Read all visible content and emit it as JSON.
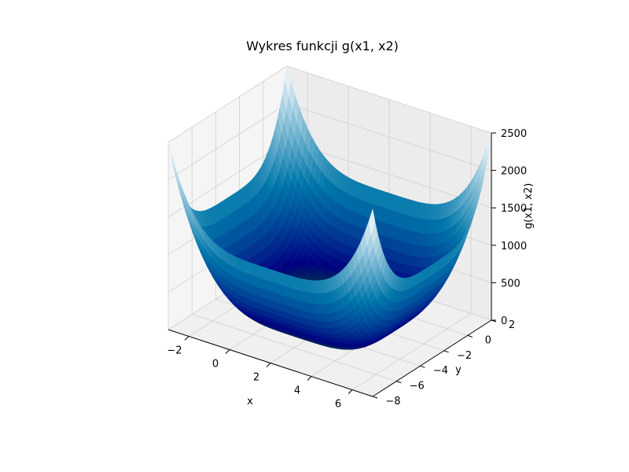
{
  "chart_data": {
    "type": "surface3d",
    "title": "Wykres funkcji g(x1, x2)",
    "xlabel": "x",
    "ylabel": "y",
    "zlabel": "g(x1, x2)",
    "xlim": [
      -3,
      7
    ],
    "ylim": [
      -8,
      2
    ],
    "zlim": [
      0,
      2500
    ],
    "xticks": [
      -2,
      0,
      2,
      4,
      6
    ],
    "yticks": [
      -8,
      -6,
      -4,
      -2,
      0,
      2
    ],
    "zticks": [
      0,
      500,
      1000,
      1500,
      2000,
      2500
    ],
    "xtick_labels": [
      "−2",
      "0",
      "2",
      "4",
      "6"
    ],
    "ytick_labels": [
      "−8",
      "−6",
      "−4",
      "−2",
      "0",
      "2"
    ],
    "ztick_labels": [
      "0",
      "500",
      "1000",
      "1500",
      "2000",
      "2500"
    ],
    "minimum": {
      "x": 2,
      "y": -3,
      "z": 0
    },
    "corner_values": {
      "x_min_y_min": 2500,
      "x_max_y_min": 1250,
      "x_min_y_max": 1250,
      "x_max_y_max": 2500
    },
    "colormap": [
      "#008000",
      "#000080",
      "#0077aa",
      "#ffffff"
    ],
    "grid": true
  }
}
